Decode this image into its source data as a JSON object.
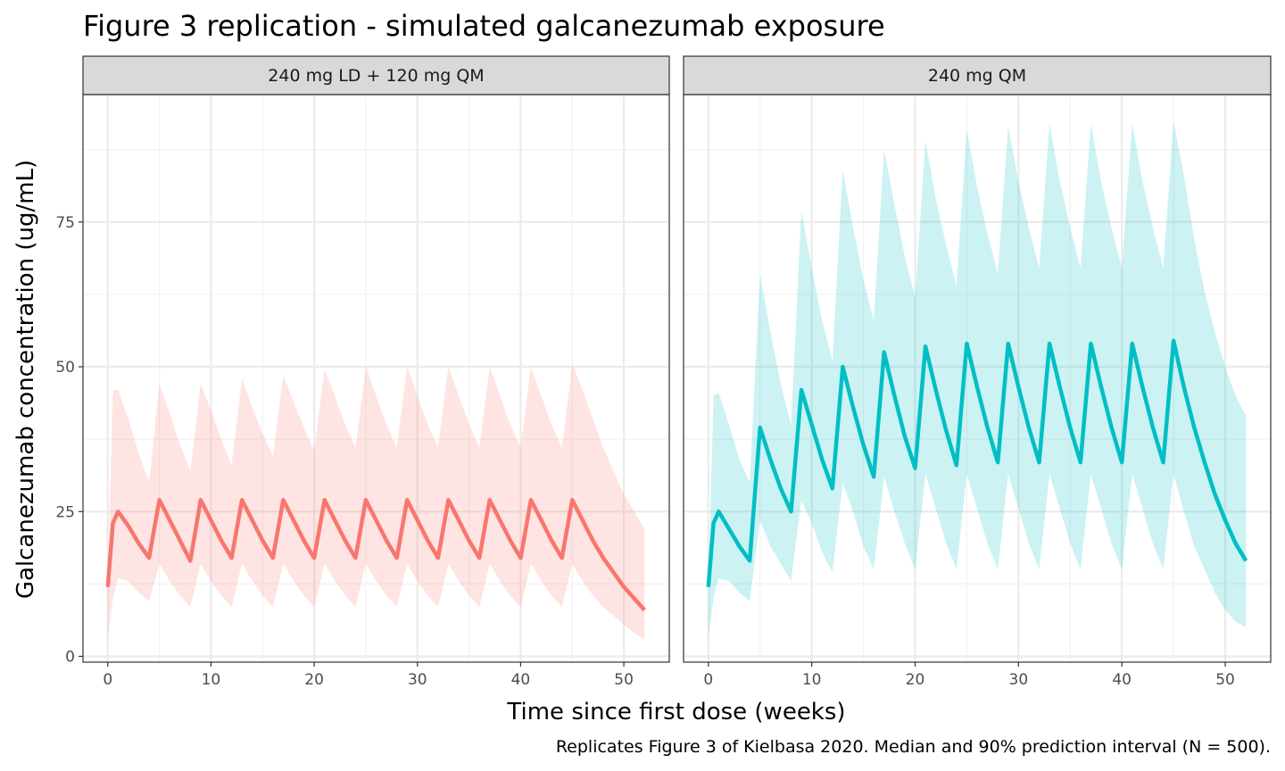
{
  "chart_data": {
    "type": "line",
    "title": "Figure 3 replication - simulated galcanezumab exposure",
    "xlabel": "Time since first dose (weeks)",
    "ylabel": "Galcanezumab concentration (ug/mL)",
    "caption": "Replicates Figure 3 of Kielbasa 2020. Median and 90% prediction interval (N = 500).",
    "xlim": [
      -2.4,
      54.4
    ],
    "ylim": [
      -1,
      97
    ],
    "x_ticks": [
      0,
      10,
      20,
      30,
      40,
      50
    ],
    "x_tick_labels": [
      "0",
      "10",
      "20",
      "30",
      "40",
      "50"
    ],
    "y_ticks": [
      0,
      25,
      50,
      75
    ],
    "y_tick_labels": [
      "0",
      "25",
      "50",
      "75"
    ],
    "grid": true,
    "time": [
      0,
      0.5,
      1,
      2,
      3,
      4,
      5,
      6,
      7,
      8,
      9,
      10,
      11,
      12,
      13,
      14,
      15,
      16,
      17,
      18,
      19,
      20,
      21,
      22,
      23,
      24,
      25,
      26,
      27,
      28,
      29,
      30,
      31,
      32,
      33,
      34,
      35,
      36,
      37,
      38,
      39,
      40,
      41,
      42,
      43,
      44,
      45,
      46,
      47,
      48,
      49,
      50,
      51,
      52
    ],
    "panels": [
      {
        "label": "240 mg LD + 120 mg QM",
        "color": "#F8766D",
        "fill": "#FDE2E1",
        "median": [
          12,
          23,
          25,
          22.5,
          19.5,
          17,
          27,
          23.5,
          20,
          16.5,
          27,
          23.5,
          20,
          17,
          27,
          23.5,
          20,
          17,
          27,
          23.5,
          20,
          17,
          27,
          23.5,
          20,
          17,
          27,
          23.5,
          20,
          17,
          27,
          23.5,
          20,
          17,
          27,
          23.5,
          20,
          17,
          27,
          23.5,
          20,
          17,
          27,
          23.5,
          20,
          17,
          27,
          23.5,
          20,
          17,
          14.5,
          12,
          10,
          8
        ],
        "upper": [
          12,
          46,
          46,
          41,
          35,
          30,
          47,
          42,
          36.5,
          32,
          47,
          42.5,
          37.5,
          33,
          48,
          43,
          38.5,
          34.5,
          48.5,
          44,
          39.5,
          35.5,
          49.5,
          45,
          40,
          36,
          50,
          45,
          40,
          36,
          50,
          45,
          40,
          36,
          50,
          45,
          40,
          36,
          50,
          45,
          40,
          36,
          50,
          45,
          40,
          36,
          50.5,
          46,
          41,
          36,
          32,
          28,
          25,
          22
        ],
        "lower": [
          3,
          10,
          13.5,
          13,
          11,
          9.5,
          16,
          13,
          10.5,
          8.5,
          16,
          13,
          10.5,
          8.5,
          16,
          13,
          10.5,
          8.5,
          16,
          13,
          10.5,
          8.5,
          16,
          13,
          10.5,
          8.5,
          16,
          13,
          10.5,
          8.5,
          16,
          13,
          10.5,
          8.5,
          16,
          13,
          10.5,
          8.5,
          16,
          13,
          10.5,
          8.5,
          16,
          13,
          10.5,
          8.5,
          16,
          13,
          10.5,
          8.5,
          7,
          5.5,
          4,
          3
        ]
      },
      {
        "label": "240 mg QM",
        "color": "#00BFC4",
        "fill": "#CCF0F1",
        "median": [
          12,
          23,
          25,
          22,
          19,
          16.5,
          39.5,
          34,
          29,
          25,
          46,
          40,
          34,
          29,
          50,
          43,
          36.5,
          31,
          52.5,
          45,
          38,
          32.5,
          53.5,
          46,
          39,
          33,
          54,
          46.5,
          39.5,
          33.5,
          54,
          46.5,
          39.5,
          33.5,
          54,
          46.5,
          39.5,
          33.5,
          54,
          46.5,
          39.5,
          33.5,
          54,
          46.5,
          39.5,
          33.5,
          54.5,
          46.5,
          39.5,
          33.5,
          28,
          23.5,
          19.5,
          16.5
        ],
        "upper": [
          12,
          45,
          45.5,
          40,
          34,
          30,
          66,
          56,
          47,
          40,
          77,
          67,
          58,
          51,
          84,
          74,
          65,
          58,
          87.5,
          78,
          69,
          62,
          89,
          79,
          71,
          64,
          91,
          81,
          73,
          66,
          91.5,
          82,
          74,
          67,
          92,
          82,
          74,
          67,
          92,
          82,
          74,
          67,
          92,
          82,
          74,
          67,
          92.5,
          83,
          72,
          63,
          56,
          50,
          45,
          41.5
        ],
        "lower": [
          3,
          10,
          13.5,
          13,
          11,
          9.5,
          23.5,
          19,
          16,
          13,
          27,
          23,
          18,
          14.5,
          30,
          25,
          19,
          15,
          31,
          25,
          19.5,
          15,
          31.5,
          25.5,
          19.5,
          15,
          31.5,
          25.5,
          19.5,
          15,
          31.5,
          25.5,
          19.5,
          15,
          31.5,
          25.5,
          19.5,
          15,
          31.5,
          25.5,
          19.5,
          15,
          31.5,
          25.5,
          19.5,
          15,
          31.5,
          25,
          19,
          15,
          11,
          8,
          6,
          5
        ]
      }
    ]
  }
}
